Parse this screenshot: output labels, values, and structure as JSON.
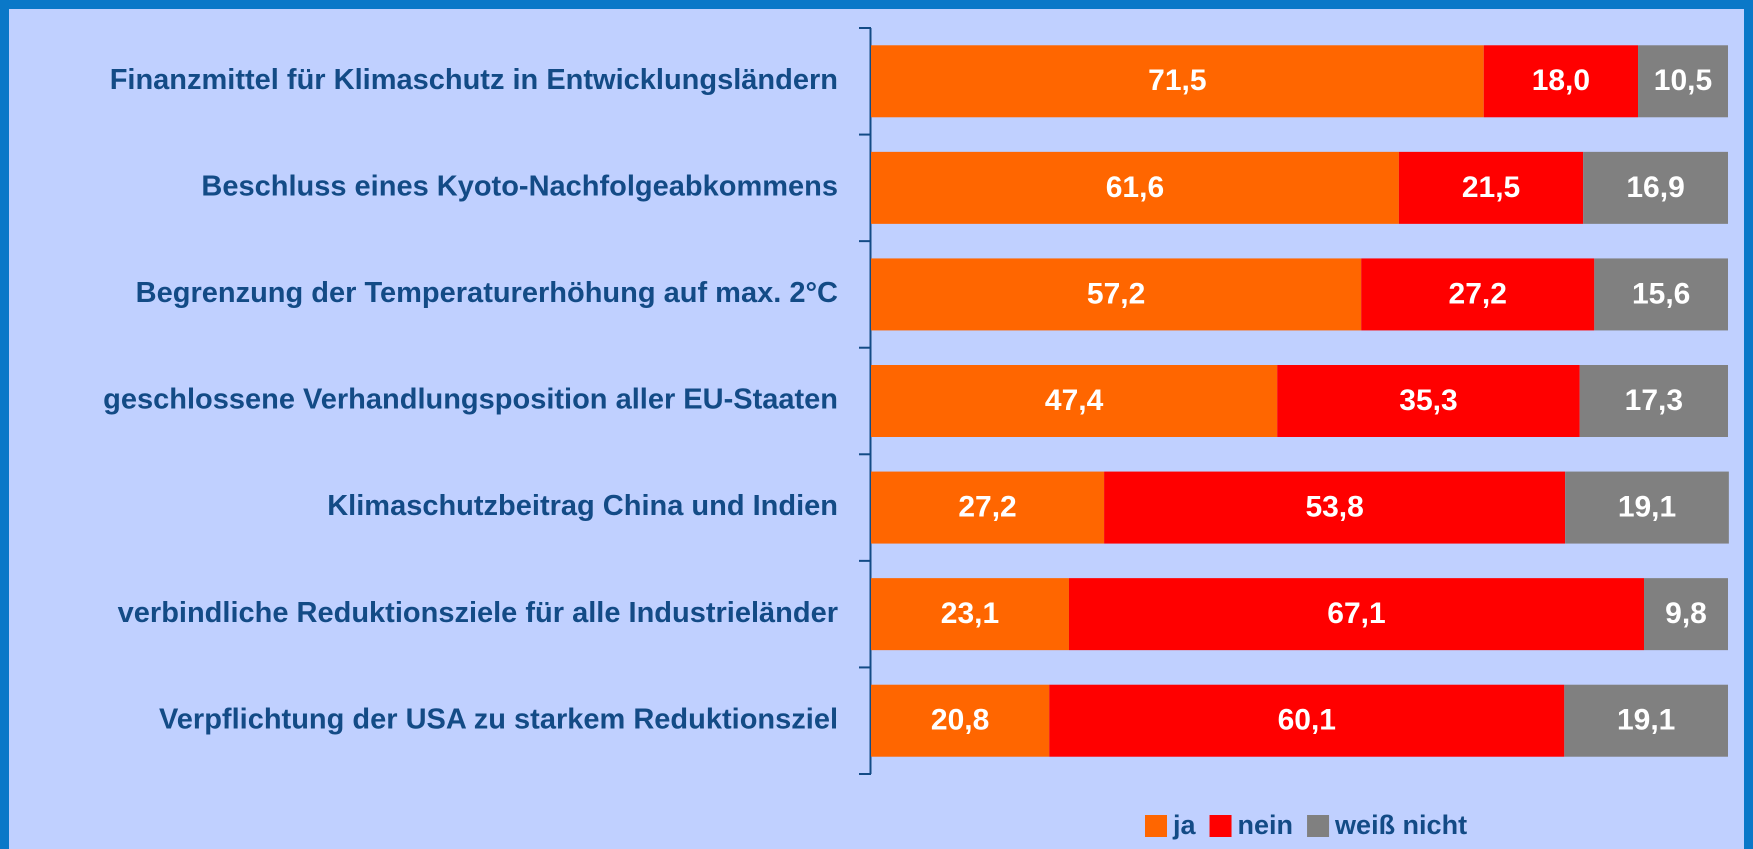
{
  "chart_data": {
    "type": "stacked-barh",
    "categories": [
      "Finanzmittel für Klimaschutz in Entwicklungsländern",
      "Beschluss eines Kyoto-Nachfolgeabkommens",
      "Begrenzung der Temperaturerhöhung auf max. 2°C",
      "geschlossene Verhandlungsposition aller EU-Staaten",
      "Klimaschutzbeitrag China und Indien",
      "verbindliche Reduktionsziele für alle Industrieländer",
      "Verpflichtung der USA zu starkem Reduktionsziel"
    ],
    "series": [
      {
        "name": "ja",
        "color": "#ff6600",
        "values": [
          71.5,
          61.6,
          57.2,
          47.4,
          27.2,
          23.1,
          20.8
        ],
        "value_labels": [
          "71,5",
          "61,6",
          "57,2",
          "47,4",
          "27,2",
          "23,1",
          "20,8"
        ]
      },
      {
        "name": "nein",
        "color": "#ff0000",
        "values": [
          18.0,
          21.5,
          27.2,
          35.3,
          53.8,
          67.1,
          60.1
        ],
        "value_labels": [
          "18,0",
          "21,5",
          "27,2",
          "35,3",
          "53,8",
          "67,1",
          "60,1"
        ]
      },
      {
        "name": "weiß nicht",
        "color": "#808080",
        "values": [
          10.5,
          16.9,
          15.6,
          17.3,
          19.1,
          9.8,
          19.1
        ],
        "value_labels": [
          "10,5",
          "16,9",
          "15,6",
          "17,3",
          "19,1",
          "9,8",
          "19,1"
        ]
      }
    ],
    "xlim": [
      0,
      100
    ],
    "legend": "bottom"
  }
}
